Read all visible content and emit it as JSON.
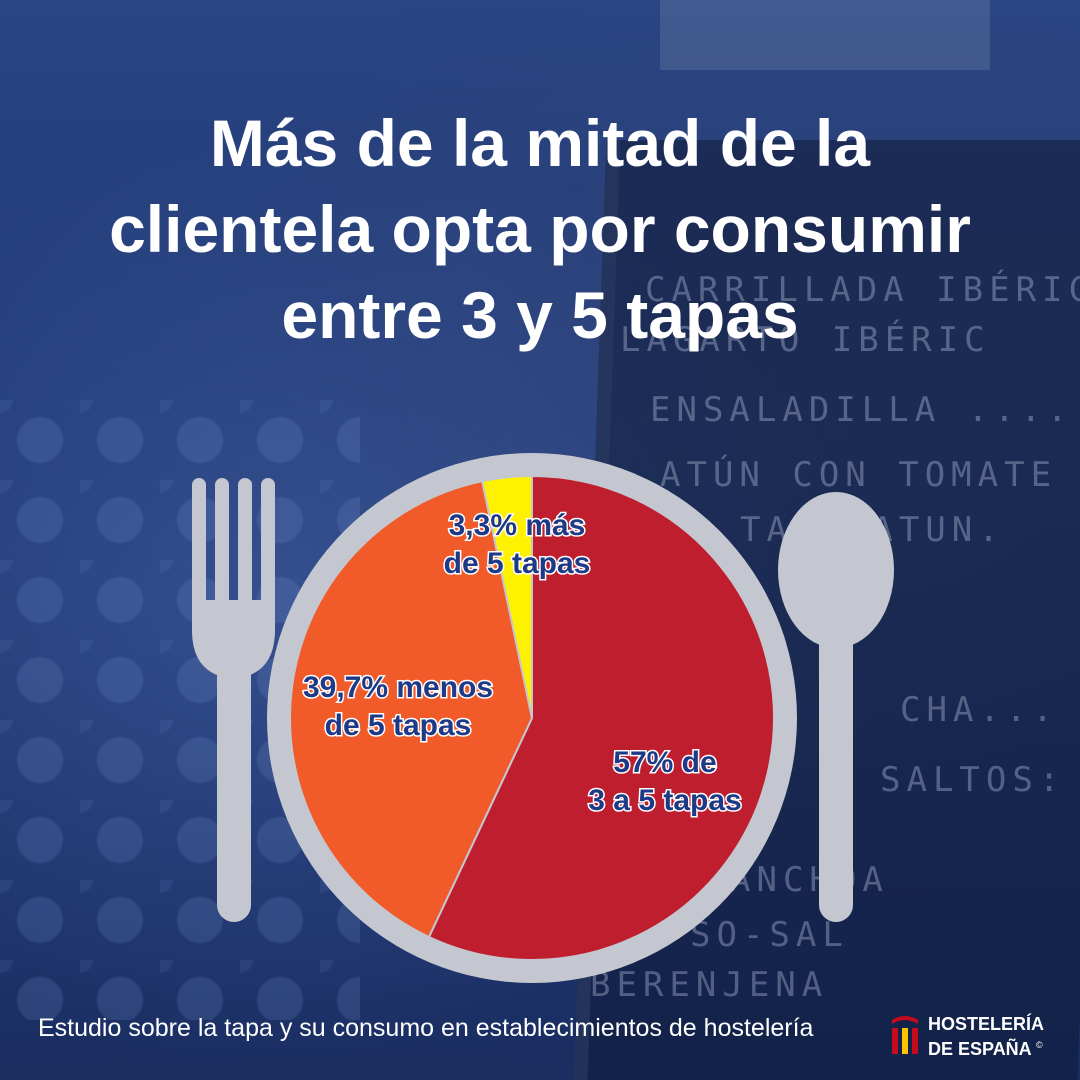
{
  "title": {
    "line1": "Más de la mitad de la",
    "line2": "clientela opta por consumir",
    "line3": "entre 3 y 5 tapas"
  },
  "background_text": {
    "sign": "LAGA",
    "chalk_lines": [
      "CARRILLADA IBÉRIC",
      "LAGARTO IBÉRIC",
      "ENSALADILLA ....",
      "ATÚN CON TOMATE",
      "TAKI  ATUN.",
      "CHA...",
      "SALTOS:",
      "ANCHOA",
      "SO-SAL",
      "BERENJENA"
    ]
  },
  "chart_data": {
    "type": "pie",
    "slices": [
      {
        "label_line1": "57% de",
        "label_line2": "3 a 5 tapas",
        "value": 57,
        "color": "#be1e2d"
      },
      {
        "label_line1": "39,7% menos",
        "label_line2": "de 5 tapas",
        "value": 39.7,
        "color": "#f15a29"
      },
      {
        "label_line1": "3,3% más",
        "label_line2": "de 5 tapas",
        "value": 3.3,
        "color": "#fff200"
      }
    ],
    "start_angle_deg": 0,
    "direction": "clockwise",
    "label_color": "#1e3a86",
    "plate_color": "#c4c7cf"
  },
  "decorations": {
    "left_utensil": "fork-icon",
    "right_utensil": "spoon-icon",
    "plate": "plate-rim"
  },
  "footer": {
    "caption": "Estudio sobre la tapa y su consumo en establecimientos de hostelería",
    "logo_line1": "HOSTELERÍA",
    "logo_line2": "DE ESPAÑA",
    "logo_mark": "©",
    "logo_colors": [
      "#c60b1e",
      "#ffc400"
    ]
  }
}
